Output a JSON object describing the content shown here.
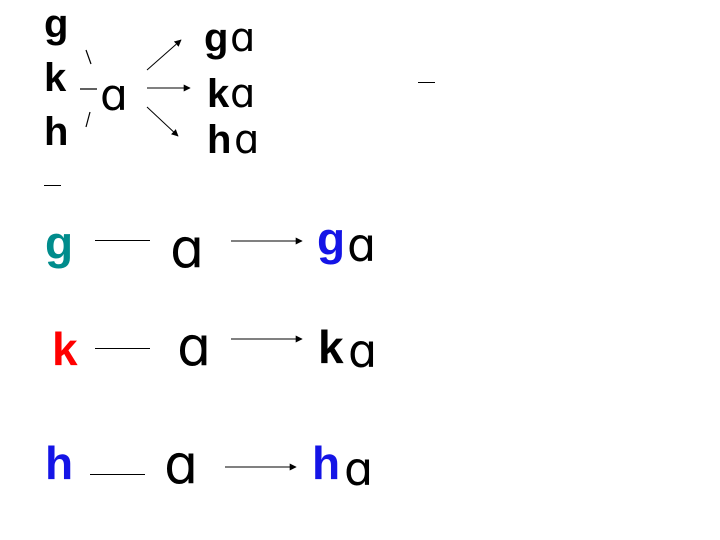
{
  "colors": {
    "black": "#000000",
    "teal": "#008c8c",
    "red": "#ff0000",
    "blue": "#1414e6"
  },
  "top": {
    "consonants": [
      "g",
      "k",
      "h"
    ],
    "vowel": "ɑ",
    "results": [
      {
        "consonant": "g",
        "vowel": "ɑ"
      },
      {
        "consonant": "k",
        "vowel": "ɑ"
      },
      {
        "consonant": "h",
        "vowel": "ɑ"
      }
    ]
  },
  "rows": [
    {
      "consonant": "g",
      "vowel": "ɑ",
      "result_consonant": "g",
      "result_vowel": "ɑ",
      "consonant_color": "teal",
      "result_color": "blue"
    },
    {
      "consonant": "k",
      "vowel": "ɑ",
      "result_consonant": "k",
      "result_vowel": "ɑ",
      "consonant_color": "red",
      "result_color": "black"
    },
    {
      "consonant": "h",
      "vowel": "ɑ",
      "result_consonant": "h",
      "result_vowel": "ɑ",
      "consonant_color": "blue",
      "result_color": "blue"
    }
  ]
}
